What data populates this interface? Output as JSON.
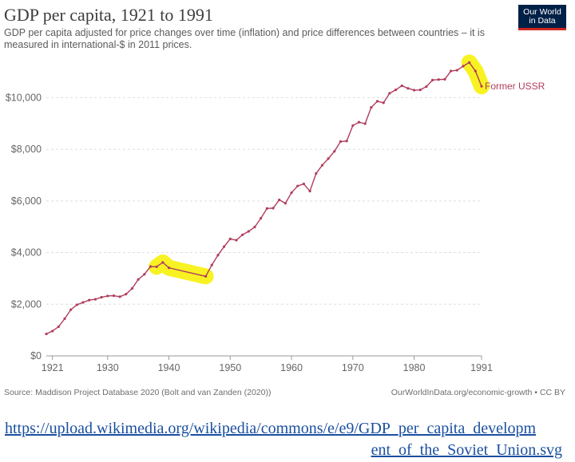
{
  "header": {
    "title": "GDP per capita, 1921 to 1991",
    "subtitle": "GDP per capita adjusted for price changes over time (inflation) and price differences between countries – it is measured in international-$ in 2011 prices."
  },
  "logo": {
    "line1": "Our World",
    "line2": "in Data"
  },
  "footer": {
    "source": "Source: Maddison Project Database 2020 (Bolt and van Zanden (2020))",
    "credit": "OurWorldInData.org/economic-growth • CC BY"
  },
  "caption": {
    "line1": "https://upload.wikimedia.org/wikipedia/commons/e/e9/GDP_per_capita_developm",
    "line2": "ent_of_the_Soviet_Union.svg"
  },
  "colors": {
    "series": "#b13d5c",
    "highlight": "#f7f10a",
    "grid": "#dddddd"
  },
  "chart_data": {
    "type": "line",
    "title": "GDP per capita, 1921 to 1991",
    "xlim": [
      1920,
      1991
    ],
    "ylim": [
      0,
      11000
    ],
    "x_ticks": [
      1921,
      1930,
      1940,
      1950,
      1960,
      1970,
      1980,
      1991
    ],
    "y_ticks": [
      0,
      2000,
      4000,
      6000,
      8000,
      10000
    ],
    "y_tick_labels": [
      "$0",
      "$2,000",
      "$4,000",
      "$6,000",
      "$8,000",
      "$10,000"
    ],
    "grid": "horizontal",
    "highlights": [
      {
        "x_range": [
          1938,
          1946
        ]
      },
      {
        "x_range": [
          1989,
          1991
        ]
      }
    ],
    "series": [
      {
        "name": "Former USSR",
        "points": [
          [
            1920,
            850
          ],
          [
            1921,
            960
          ],
          [
            1922,
            1130
          ],
          [
            1923,
            1440
          ],
          [
            1924,
            1790
          ],
          [
            1925,
            1980
          ],
          [
            1926,
            2070
          ],
          [
            1927,
            2160
          ],
          [
            1928,
            2190
          ],
          [
            1929,
            2270
          ],
          [
            1930,
            2320
          ],
          [
            1931,
            2330
          ],
          [
            1932,
            2290
          ],
          [
            1933,
            2390
          ],
          [
            1934,
            2610
          ],
          [
            1935,
            2960
          ],
          [
            1936,
            3160
          ],
          [
            1937,
            3460
          ],
          [
            1938,
            3450
          ],
          [
            1939,
            3620
          ],
          [
            1940,
            3410
          ],
          [
            1946,
            3080
          ],
          [
            1947,
            3520
          ],
          [
            1948,
            3900
          ],
          [
            1949,
            4230
          ],
          [
            1950,
            4530
          ],
          [
            1951,
            4480
          ],
          [
            1952,
            4690
          ],
          [
            1953,
            4820
          ],
          [
            1954,
            4990
          ],
          [
            1955,
            5330
          ],
          [
            1956,
            5710
          ],
          [
            1957,
            5720
          ],
          [
            1958,
            6040
          ],
          [
            1959,
            5910
          ],
          [
            1960,
            6320
          ],
          [
            1961,
            6580
          ],
          [
            1962,
            6660
          ],
          [
            1963,
            6380
          ],
          [
            1964,
            7060
          ],
          [
            1965,
            7380
          ],
          [
            1966,
            7640
          ],
          [
            1967,
            7920
          ],
          [
            1968,
            8300
          ],
          [
            1969,
            8320
          ],
          [
            1970,
            8920
          ],
          [
            1971,
            9050
          ],
          [
            1972,
            8990
          ],
          [
            1973,
            9620
          ],
          [
            1974,
            9860
          ],
          [
            1975,
            9800
          ],
          [
            1976,
            10170
          ],
          [
            1977,
            10300
          ],
          [
            1978,
            10460
          ],
          [
            1979,
            10360
          ],
          [
            1980,
            10290
          ],
          [
            1981,
            10300
          ],
          [
            1982,
            10430
          ],
          [
            1983,
            10680
          ],
          [
            1984,
            10700
          ],
          [
            1985,
            10710
          ],
          [
            1986,
            11030
          ],
          [
            1987,
            11060
          ],
          [
            1988,
            11220
          ],
          [
            1989,
            11360
          ],
          [
            1990,
            11030
          ],
          [
            1991,
            10440
          ]
        ]
      }
    ]
  }
}
